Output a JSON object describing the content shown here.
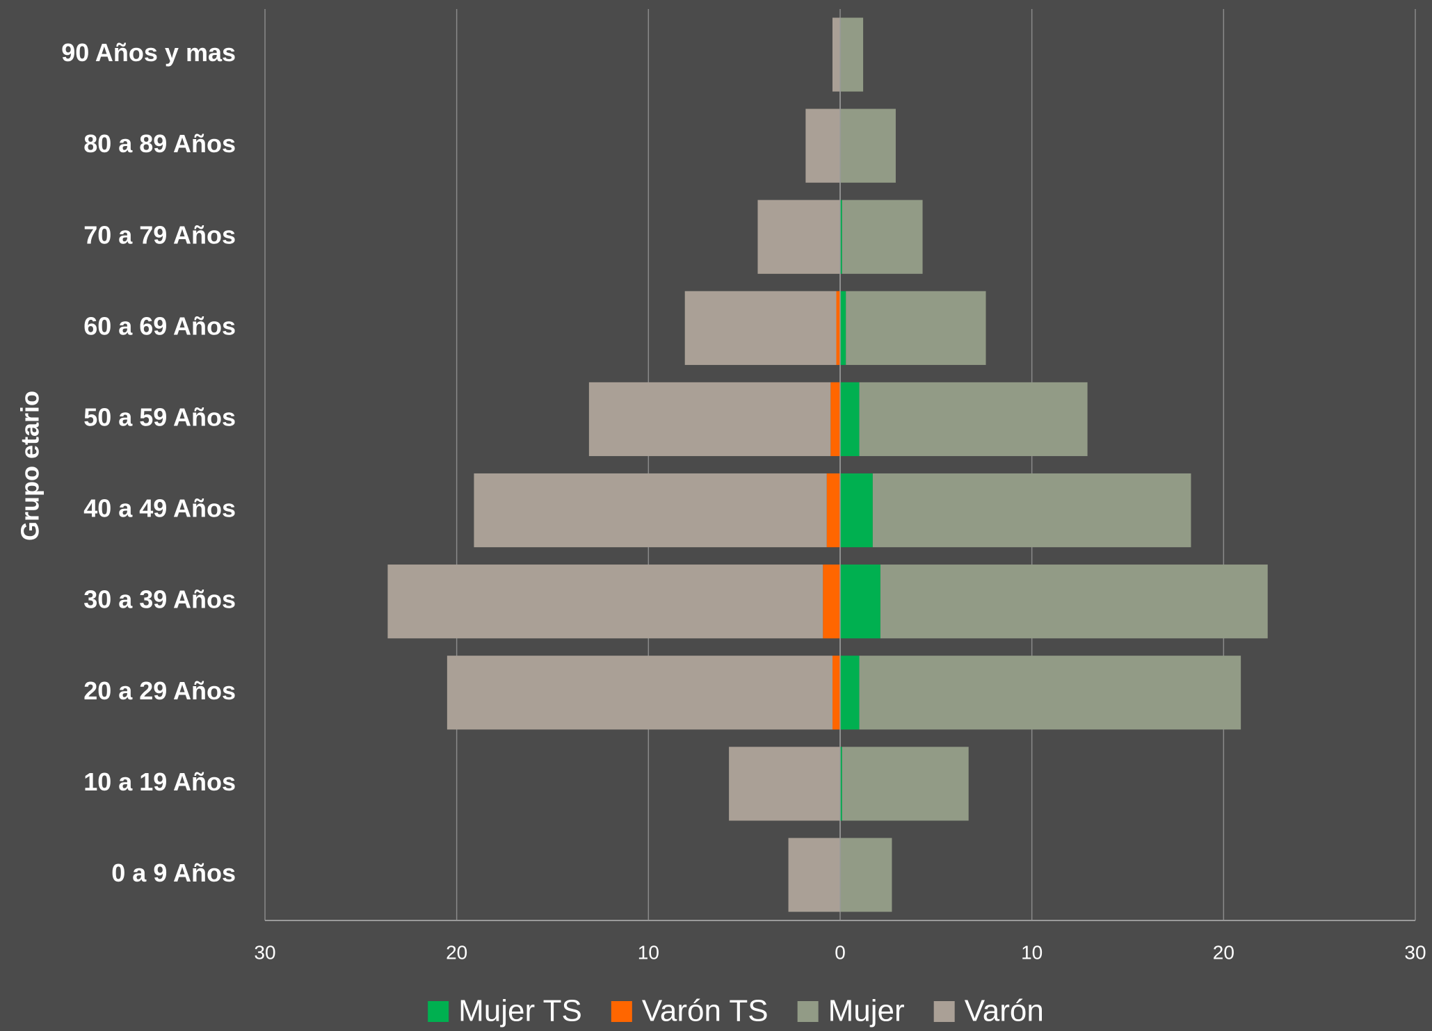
{
  "chart_data": {
    "type": "bar",
    "orientation": "horizontal",
    "stacked": true,
    "y_label": "Grupo etario",
    "categories": [
      "0 a 9 Años",
      "10 a 19 Años",
      "20 a 29 Años",
      "30 a 39 Años",
      "40 a 49 Años",
      "50 a 59 Años",
      "60 a 69 Años",
      "70 a 79 Años",
      "80 a 89 Años",
      "90 Años y mas"
    ],
    "series": [
      {
        "name": "Mujer TS",
        "color": "#00b050",
        "values": [
          0,
          0.1,
          1.0,
          2.1,
          1.7,
          1.0,
          0.3,
          0.1,
          0,
          0
        ]
      },
      {
        "name": "Varón TS",
        "color": "#ff6600",
        "values": [
          0,
          0,
          -0.4,
          -0.9,
          -0.7,
          -0.5,
          -0.2,
          0,
          0,
          0
        ]
      },
      {
        "name": "Mujer",
        "color": "#929b86",
        "values": [
          2.7,
          6.6,
          19.9,
          20.2,
          16.6,
          11.9,
          7.3,
          4.2,
          2.9,
          1.2
        ]
      },
      {
        "name": "Varón",
        "color": "#aaa096",
        "values": [
          -2.7,
          -5.8,
          -20.1,
          -22.7,
          -18.4,
          -12.6,
          -7.9,
          -4.3,
          -1.8,
          -0.4
        ]
      }
    ],
    "xlim": [
      -30,
      30
    ],
    "xticks": [
      {
        "value": -30,
        "label": "30"
      },
      {
        "value": -20,
        "label": "20"
      },
      {
        "value": -10,
        "label": "10"
      },
      0,
      10,
      20,
      30
    ],
    "grid": true,
    "legend": "bottom"
  }
}
